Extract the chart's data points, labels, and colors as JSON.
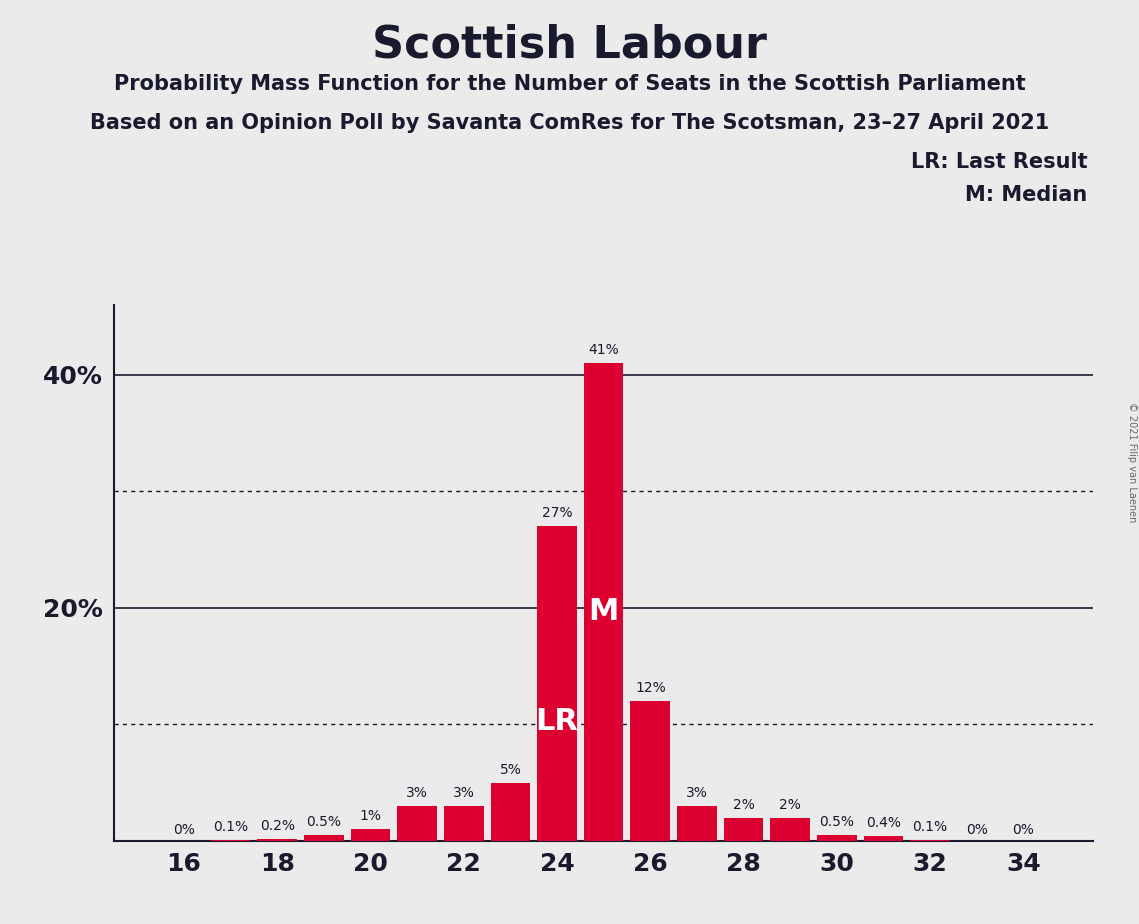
{
  "title": "Scottish Labour",
  "subtitle1": "Probability Mass Function for the Number of Seats in the Scottish Parliament",
  "subtitle2": "Based on an Opinion Poll by Savanta ComRes for The Scotsman, 23–27 April 2021",
  "copyright": "© 2021 Filip van Laenen",
  "seats": [
    16,
    17,
    18,
    19,
    20,
    21,
    22,
    23,
    24,
    25,
    26,
    27,
    28,
    29,
    30,
    31,
    32,
    33,
    34
  ],
  "probabilities": [
    0.0,
    0.1,
    0.2,
    0.5,
    1.0,
    3.0,
    3.0,
    5.0,
    27.0,
    41.0,
    12.0,
    3.0,
    2.0,
    2.0,
    0.5,
    0.4,
    0.1,
    0.0,
    0.0
  ],
  "bar_color": "#dc0030",
  "bg_color": "#ebebeb",
  "last_result_seat": 24,
  "median_seat": 25,
  "legend_lr": "LR: Last Result",
  "legend_m": "M: Median",
  "xlabel_seats": [
    16,
    18,
    20,
    22,
    24,
    26,
    28,
    30,
    32,
    34
  ],
  "ytick_labels": [
    "",
    "",
    "20%",
    "",
    "40%"
  ],
  "ytick_values": [
    0,
    10,
    20,
    30,
    40
  ],
  "ylim": [
    0,
    46
  ],
  "dotted_lines": [
    10,
    30
  ],
  "solid_lines": [
    20,
    40
  ],
  "xlim_left": 14.5,
  "xlim_right": 35.5
}
